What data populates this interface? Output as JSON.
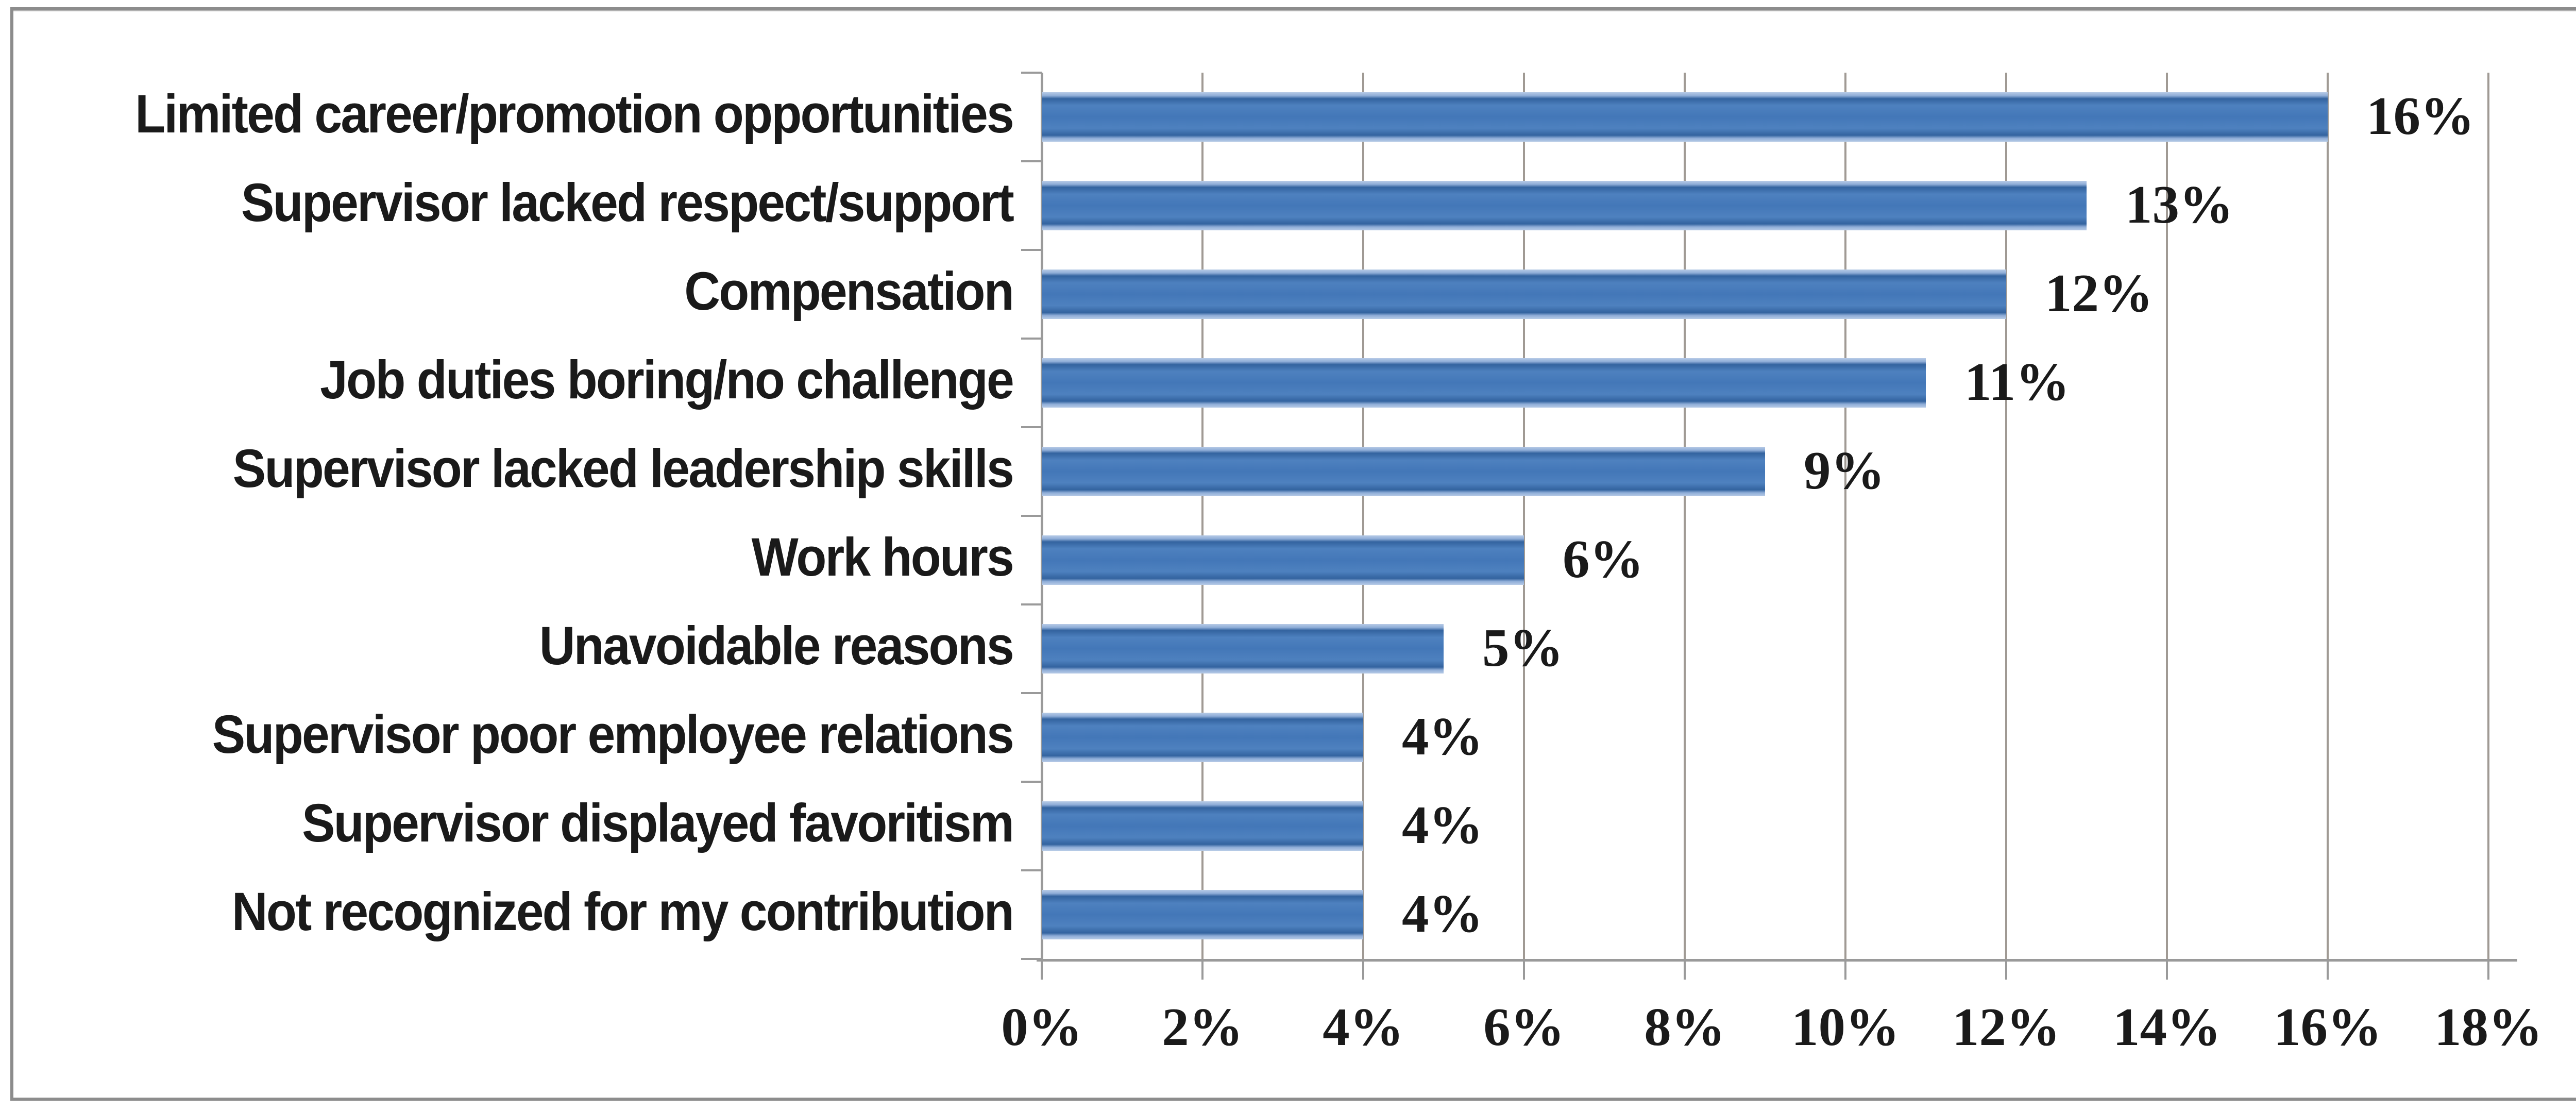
{
  "chart_data": {
    "type": "bar",
    "orientation": "horizontal",
    "title": "",
    "xlabel": "",
    "ylabel": "",
    "categories": [
      "Limited career/promotion opportunities",
      "Supervisor lacked respect/support",
      "Compensation",
      "Job duties boring/no challenge",
      "Supervisor lacked leadership skills",
      "Work hours",
      "Unavoidable reasons",
      "Supervisor poor employee relations",
      "Supervisor displayed favoritism",
      "Not recognized for my contribution"
    ],
    "values": [
      16,
      13,
      12,
      11,
      9,
      6,
      5,
      4,
      4,
      4
    ],
    "value_labels": [
      "16%",
      "13%",
      "12%",
      "11%",
      "9%",
      "6%",
      "5%",
      "4%",
      "4%",
      "4%"
    ],
    "x_tick_labels": [
      "0%",
      "2%",
      "4%",
      "6%",
      "8%",
      "10%",
      "12%",
      "14%",
      "16%",
      "18%"
    ],
    "x_tick_values": [
      0,
      2,
      4,
      6,
      8,
      10,
      12,
      14,
      16,
      18
    ],
    "xlim": [
      0,
      18
    ],
    "grid": true,
    "legend": false,
    "colors": {
      "bar": "#4377b8",
      "bar_edge": "#33639f",
      "bar_highlight": "#b7cbe6",
      "gridline": "#a09a94",
      "axis": "#9a9a9a",
      "frame_border": "#8c8c8c",
      "text": "#1a1a1a",
      "background": "#ffffff"
    }
  }
}
